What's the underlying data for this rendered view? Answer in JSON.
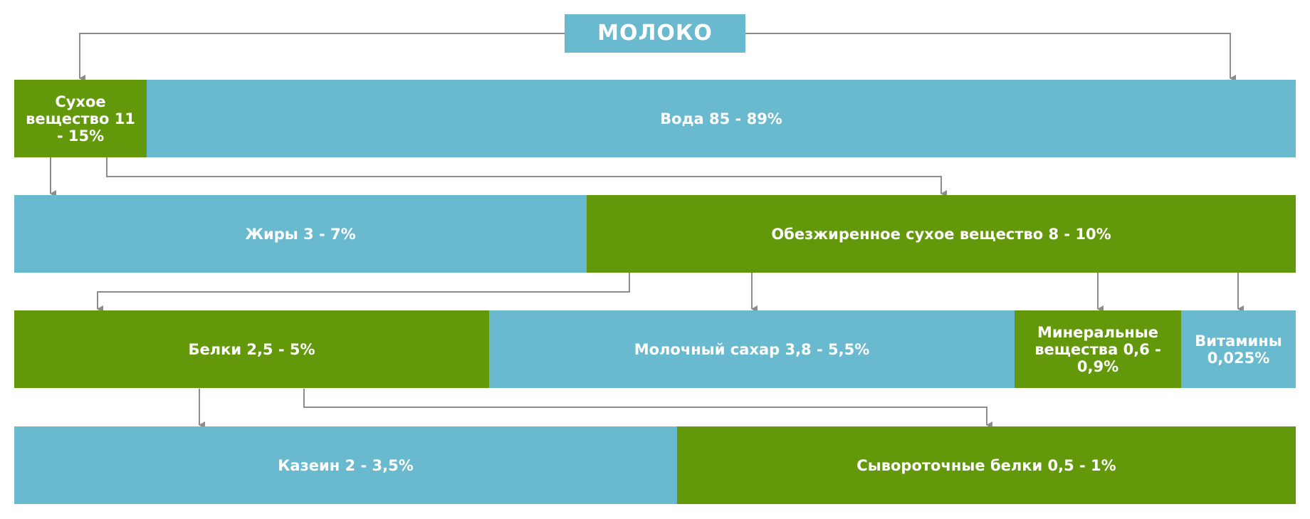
{
  "colors": {
    "blue": "#69b9cf",
    "green": "#63980b",
    "connector": "#8c8c8c",
    "text": "#ffffff"
  },
  "diagram": {
    "root": "МОЛОКО",
    "level1": {
      "dry_matter": "Сухое вещество 11 - 15%",
      "water": "Вода 85 - 89%"
    },
    "level2": {
      "fats": "Жиры 3 - 7%",
      "skim_dry_matter": "Обезжиренное сухое вещество 8 - 10%"
    },
    "level3": {
      "proteins": "Белки 2,5 - 5%",
      "lactose": "Молочный сахар 3,8 - 5,5%",
      "minerals": "Минеральные вещества 0,6 - 0,9%",
      "vitamins": "Витамины 0,025%"
    },
    "level4": {
      "casein": "Казеин 2 - 3,5%",
      "whey_proteins": "Сывороточные белки 0,5 - 1%"
    }
  }
}
